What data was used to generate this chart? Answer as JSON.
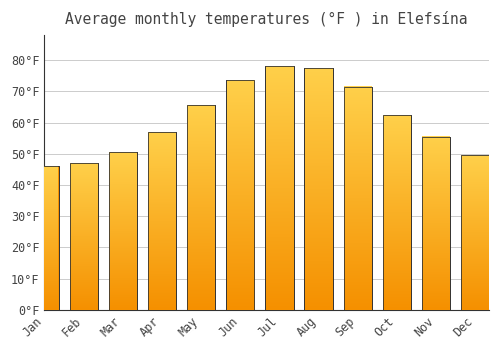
{
  "title": "Average monthly temperatures (°F ) in Elefsína",
  "months": [
    "Jan",
    "Feb",
    "Mar",
    "Apr",
    "May",
    "Jun",
    "Jul",
    "Aug",
    "Sep",
    "Oct",
    "Nov",
    "Dec"
  ],
  "values": [
    46,
    47,
    50.5,
    57,
    65.5,
    73.5,
    78,
    77.5,
    71.5,
    62.5,
    55.5,
    49.5
  ],
  "bar_color_top": "#FFD04A",
  "bar_color_bottom": "#F59000",
  "bar_edge_color": "#333333",
  "background_color": "#FFFFFF",
  "grid_color": "#CCCCCC",
  "text_color": "#444444",
  "ylim": [
    0,
    88
  ],
  "yticks": [
    0,
    10,
    20,
    30,
    40,
    50,
    60,
    70,
    80
  ],
  "ytick_labels": [
    "0°F",
    "10°F",
    "20°F",
    "30°F",
    "40°F",
    "50°F",
    "60°F",
    "70°F",
    "80°F"
  ],
  "title_fontsize": 10.5,
  "tick_fontsize": 8.5
}
